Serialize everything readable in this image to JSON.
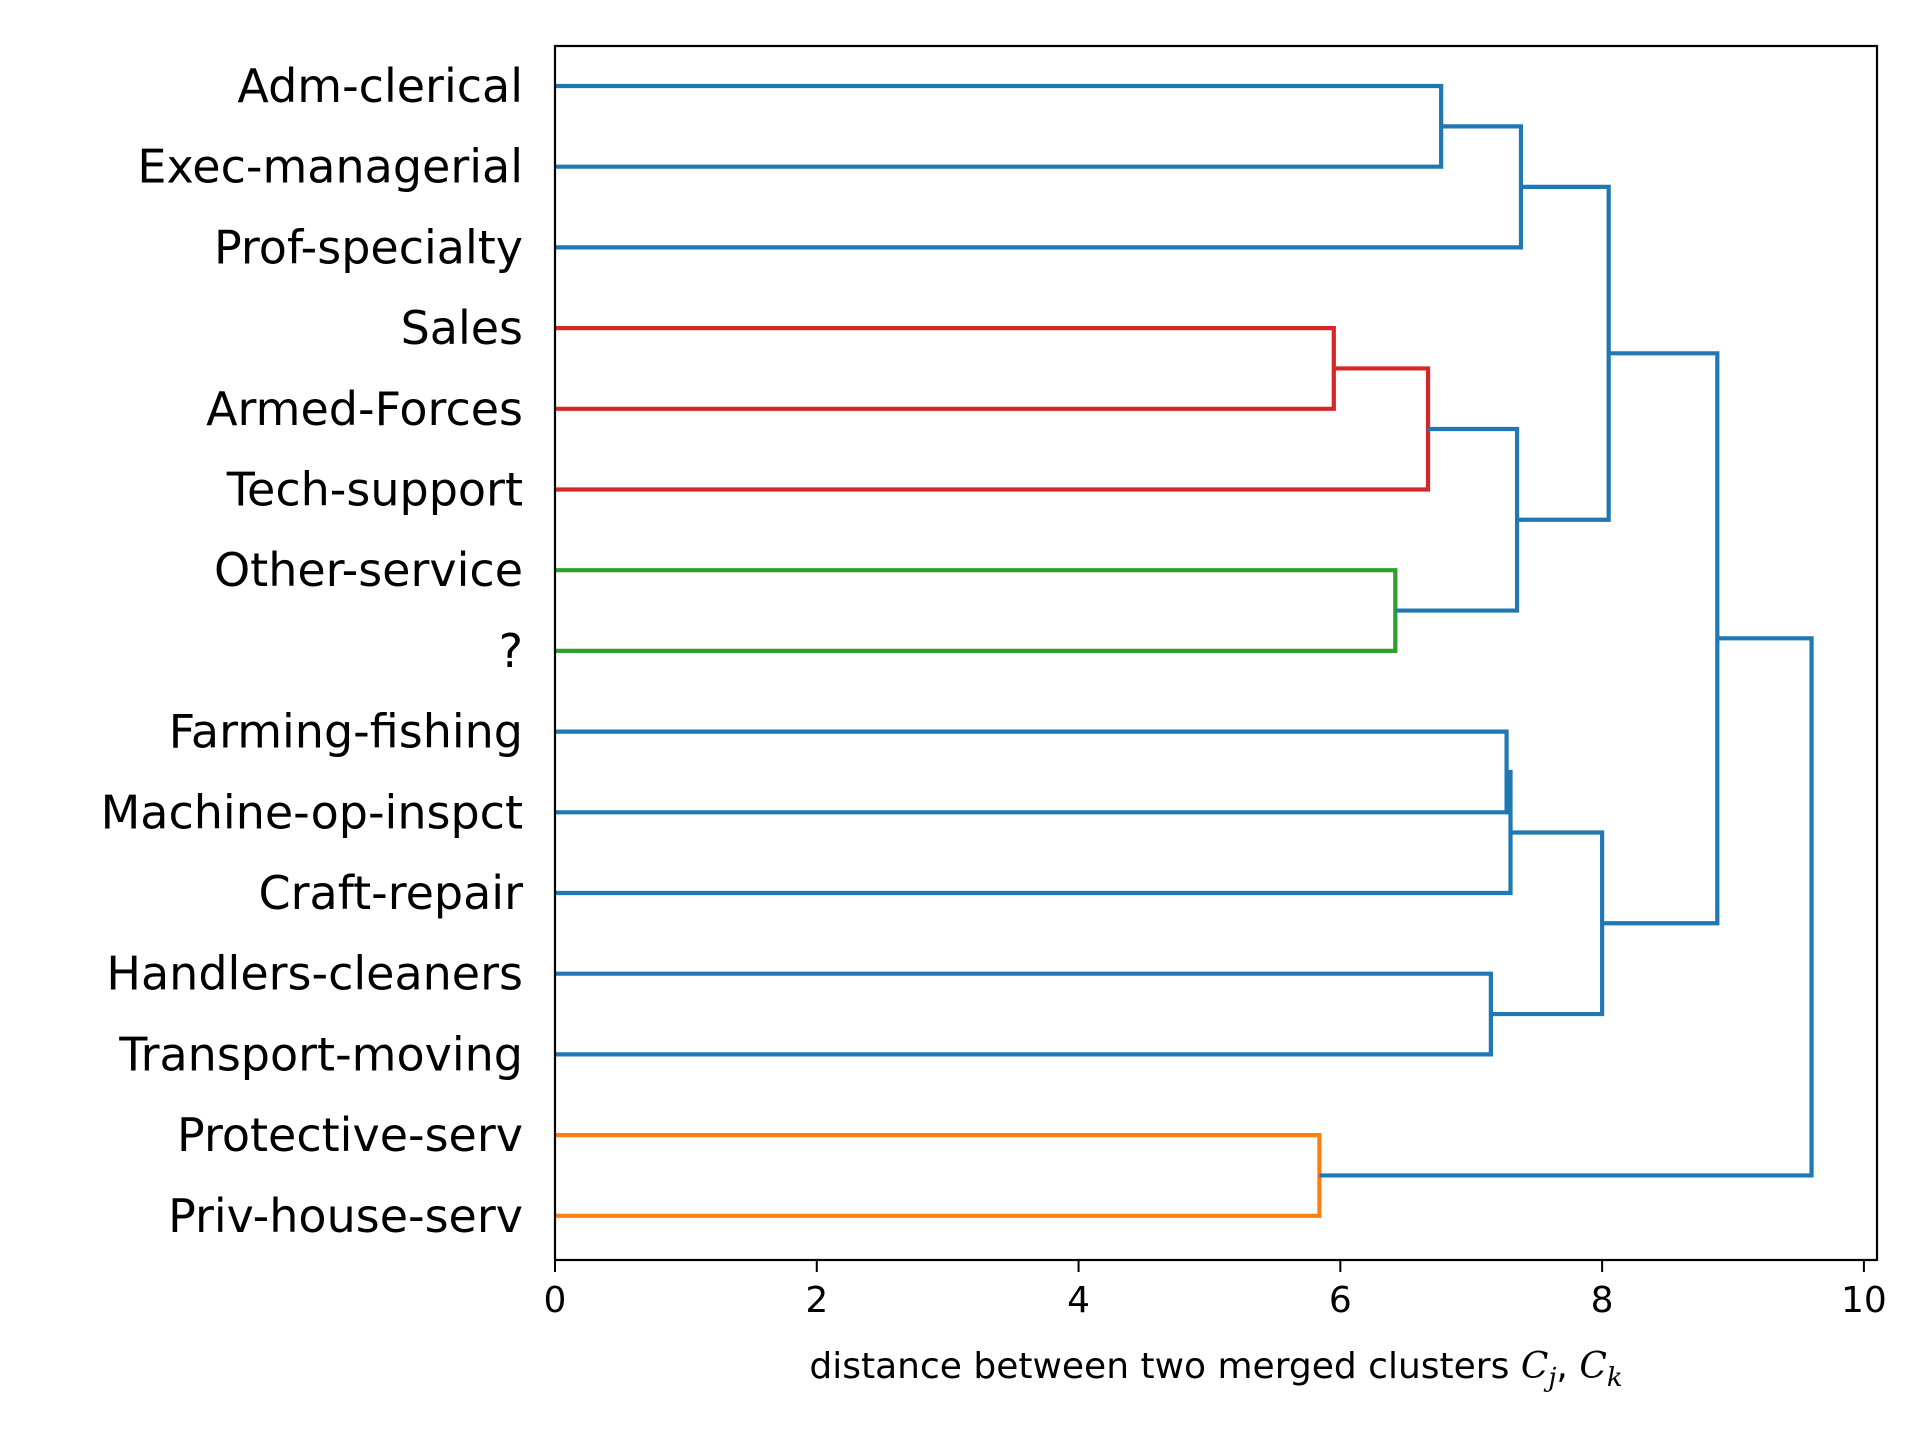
{
  "chart_data": {
    "type": "dendrogram",
    "orientation": "left",
    "xlabel": {
      "prefix": "distance between two merged clusters ",
      "c1": "C",
      "s1": "j",
      "sep": ", ",
      "c2": "C",
      "s2": "k"
    },
    "xlim": [
      0,
      10.1
    ],
    "xticks": [
      0,
      2,
      4,
      6,
      8,
      10
    ],
    "xtick_labels": [
      "0",
      "2",
      "4",
      "6",
      "8",
      "10"
    ],
    "leaves": [
      "Adm-clerical",
      "Exec-managerial",
      "Prof-specialty",
      "Sales",
      "Armed-Forces",
      "Tech-support",
      "Other-service",
      "?",
      "Farming-fishing",
      "Machine-op-inspct",
      "Craft-repair",
      "Handlers-cleaners",
      "Transport-moving",
      "Protective-serv",
      "Priv-house-serv"
    ],
    "colors": {
      "blue": "#1f77b4",
      "red": "#d62728",
      "green": "#2ca02c",
      "orange": "#ff7f0e"
    },
    "merges": [
      {
        "id": "m1",
        "a": "L0",
        "b": "L1",
        "distance": 6.77,
        "color": "blue"
      },
      {
        "id": "m2",
        "a": "m1",
        "b": "L2",
        "distance": 7.38,
        "color": "blue"
      },
      {
        "id": "m3",
        "a": "L3",
        "b": "L4",
        "distance": 5.95,
        "color": "red"
      },
      {
        "id": "m4",
        "a": "m3",
        "b": "L5",
        "distance": 6.67,
        "color": "red"
      },
      {
        "id": "m5",
        "a": "L6",
        "b": "L7",
        "distance": 6.42,
        "color": "green"
      },
      {
        "id": "m6",
        "a": "m4",
        "b": "m5",
        "distance": 7.35,
        "color": "blue"
      },
      {
        "id": "m7",
        "a": "m2",
        "b": "m6",
        "distance": 8.05,
        "color": "blue"
      },
      {
        "id": "m8",
        "a": "L8",
        "b": "L9",
        "distance": 7.27,
        "color": "blue"
      },
      {
        "id": "m9",
        "a": "m8",
        "b": "L10",
        "distance": 7.3,
        "color": "blue"
      },
      {
        "id": "m10",
        "a": "L11",
        "b": "L12",
        "distance": 7.15,
        "color": "blue"
      },
      {
        "id": "m11",
        "a": "m9",
        "b": "m10",
        "distance": 8.0,
        "color": "blue"
      },
      {
        "id": "m12",
        "a": "m7",
        "b": "m11",
        "distance": 8.88,
        "color": "blue"
      },
      {
        "id": "m13",
        "a": "L13",
        "b": "L14",
        "distance": 5.84,
        "color": "orange"
      },
      {
        "id": "m14",
        "a": "m12",
        "b": "m13",
        "distance": 9.6,
        "color": "blue"
      }
    ]
  }
}
